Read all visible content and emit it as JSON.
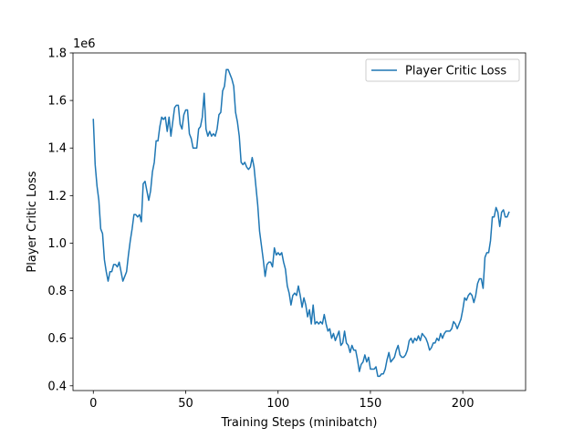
{
  "chart_data": {
    "type": "line",
    "title": "",
    "xlabel": "Training Steps (minibatch)",
    "ylabel": "Player Critic Loss",
    "offset_text": "1e6",
    "y_scale_factor": 1000000,
    "xlim": [
      -11,
      234
    ],
    "ylim": [
      0.38,
      1.8
    ],
    "x_ticks": [
      0,
      50,
      100,
      150,
      200
    ],
    "y_ticks": [
      0.4,
      0.6,
      0.8,
      1.0,
      1.2,
      1.4,
      1.6,
      1.8
    ],
    "y_tick_labels": [
      "0.4",
      "0.6",
      "0.8",
      "1.0",
      "1.2",
      "1.4",
      "1.6",
      "1.8"
    ],
    "legend": {
      "placement": "top-right",
      "entries": [
        "Player Critic Loss"
      ]
    },
    "grid": false,
    "colors": {
      "series": "#1f77b4"
    },
    "series": [
      {
        "name": "Player Critic Loss",
        "y": [
          1.52,
          1.33,
          1.24,
          1.18,
          1.06,
          1.04,
          0.93,
          0.88,
          0.84,
          0.88,
          0.88,
          0.91,
          0.91,
          0.9,
          0.92,
          0.88,
          0.84,
          0.86,
          0.88,
          0.95,
          1.01,
          1.06,
          1.12,
          1.12,
          1.11,
          1.12,
          1.09,
          1.25,
          1.26,
          1.22,
          1.18,
          1.22,
          1.3,
          1.34,
          1.43,
          1.43,
          1.49,
          1.53,
          1.52,
          1.53,
          1.47,
          1.53,
          1.45,
          1.51,
          1.57,
          1.58,
          1.58,
          1.5,
          1.48,
          1.54,
          1.56,
          1.56,
          1.46,
          1.44,
          1.4,
          1.4,
          1.4,
          1.48,
          1.49,
          1.53,
          1.63,
          1.48,
          1.45,
          1.47,
          1.45,
          1.46,
          1.45,
          1.48,
          1.54,
          1.55,
          1.64,
          1.66,
          1.73,
          1.73,
          1.71,
          1.69,
          1.66,
          1.55,
          1.51,
          1.45,
          1.34,
          1.33,
          1.34,
          1.32,
          1.31,
          1.32,
          1.36,
          1.32,
          1.24,
          1.16,
          1.05,
          0.99,
          0.93,
          0.86,
          0.91,
          0.92,
          0.92,
          0.9,
          0.98,
          0.95,
          0.96,
          0.95,
          0.96,
          0.92,
          0.89,
          0.82,
          0.79,
          0.74,
          0.78,
          0.79,
          0.78,
          0.82,
          0.78,
          0.73,
          0.77,
          0.74,
          0.69,
          0.72,
          0.66,
          0.74,
          0.66,
          0.67,
          0.66,
          0.67,
          0.66,
          0.7,
          0.66,
          0.63,
          0.64,
          0.6,
          0.62,
          0.59,
          0.61,
          0.63,
          0.57,
          0.58,
          0.63,
          0.58,
          0.57,
          0.54,
          0.57,
          0.55,
          0.55,
          0.51,
          0.46,
          0.49,
          0.5,
          0.53,
          0.5,
          0.52,
          0.47,
          0.47,
          0.47,
          0.48,
          0.44,
          0.44,
          0.45,
          0.45,
          0.47,
          0.51,
          0.54,
          0.5,
          0.51,
          0.52,
          0.55,
          0.57,
          0.53,
          0.52,
          0.52,
          0.53,
          0.55,
          0.59,
          0.6,
          0.58,
          0.6,
          0.59,
          0.61,
          0.59,
          0.62,
          0.61,
          0.6,
          0.58,
          0.55,
          0.56,
          0.58,
          0.58,
          0.6,
          0.59,
          0.62,
          0.6,
          0.62,
          0.63,
          0.63,
          0.63,
          0.64,
          0.67,
          0.66,
          0.64,
          0.66,
          0.68,
          0.72,
          0.77,
          0.76,
          0.78,
          0.79,
          0.78,
          0.75,
          0.78,
          0.83,
          0.85,
          0.85,
          0.81,
          0.94,
          0.96,
          0.96,
          1.01,
          1.11,
          1.11,
          1.15,
          1.13,
          1.07,
          1.13,
          1.14,
          1.11,
          1.11,
          1.13
        ]
      }
    ]
  }
}
